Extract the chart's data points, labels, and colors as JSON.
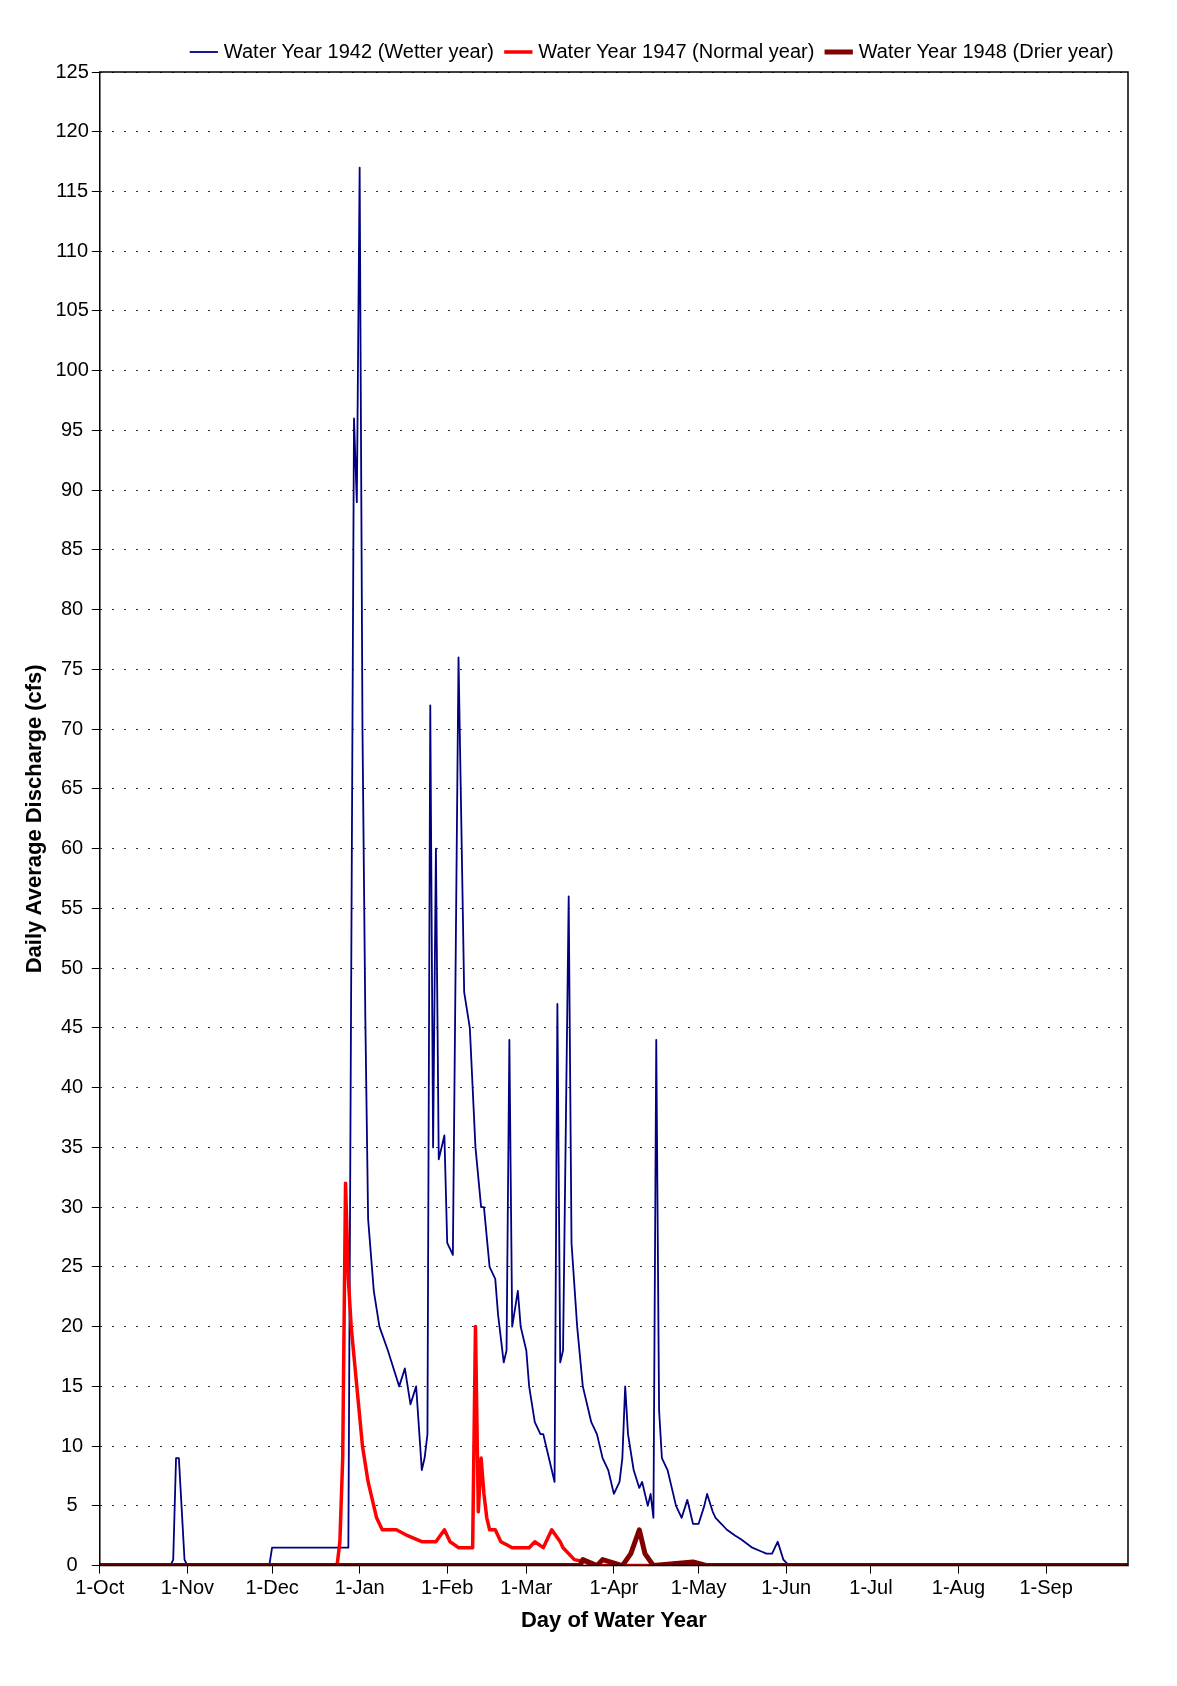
{
  "chart_data": {
    "type": "line",
    "xlabel": "Day of Water Year",
    "ylabel": "Daily Average Discharge (cfs)",
    "xlim": [
      "1941-10-01",
      "1942-09-30"
    ],
    "xticks": [
      {
        "value": "1941-10-01",
        "label": "1-Oct"
      },
      {
        "value": "1941-11-01",
        "label": "1-Nov"
      },
      {
        "value": "1941-12-01",
        "label": "1-Dec"
      },
      {
        "value": "1942-01-01",
        "label": "1-Jan"
      },
      {
        "value": "1942-02-01",
        "label": "1-Feb"
      },
      {
        "value": "1942-03-01",
        "label": "1-Mar"
      },
      {
        "value": "1942-04-01",
        "label": "1-Apr"
      },
      {
        "value": "1942-05-01",
        "label": "1-May"
      },
      {
        "value": "1942-06-01",
        "label": "1-Jun"
      },
      {
        "value": "1942-07-01",
        "label": "1-Jul"
      },
      {
        "value": "1942-08-01",
        "label": "1-Aug"
      },
      {
        "value": "1942-09-01",
        "label": "1-Sep"
      }
    ],
    "ylim": [
      0,
      125
    ],
    "yticks": [
      0,
      5,
      10,
      15,
      20,
      25,
      30,
      35,
      40,
      45,
      50,
      55,
      60,
      65,
      70,
      75,
      80,
      85,
      90,
      95,
      100,
      105,
      110,
      115,
      120,
      125
    ],
    "grid": "y",
    "legend": "top right",
    "marker": "none",
    "line_style": "solid",
    "series": [
      {
        "name": "Water Year 1942 (Wetter year)",
        "color": "#000080",
        "x": [
          "1941-10-01",
          "1941-10-26",
          "1941-10-27",
          "1941-10-28",
          "1941-10-29",
          "1941-10-31",
          "1941-11-01",
          "1941-11-30",
          "1941-12-01",
          "1941-12-28",
          "1941-12-30",
          "1941-12-31",
          "1942-01-01",
          "1942-01-02",
          "1942-01-03",
          "1942-01-04",
          "1942-01-06",
          "1942-01-08",
          "1942-01-11",
          "1942-01-13",
          "1942-01-15",
          "1942-01-17",
          "1942-01-19",
          "1942-01-21",
          "1942-01-23",
          "1942-01-24",
          "1942-01-25",
          "1942-01-26",
          "1942-01-27",
          "1942-01-28",
          "1942-01-29",
          "1942-01-31",
          "1942-02-01",
          "1942-02-03",
          "1942-02-05",
          "1942-02-07",
          "1942-02-09",
          "1942-02-11",
          "1942-02-13",
          "1942-02-14",
          "1942-02-16",
          "1942-02-18",
          "1942-02-19",
          "1942-02-21",
          "1942-02-22",
          "1942-02-23",
          "1942-02-24",
          "1942-02-26",
          "1942-02-27",
          "1942-03-01",
          "1942-03-02",
          "1942-03-04",
          "1942-03-06",
          "1942-03-07",
          "1942-03-09",
          "1942-03-10",
          "1942-03-11",
          "1942-03-12",
          "1942-03-13",
          "1942-03-14",
          "1942-03-16",
          "1942-03-17",
          "1942-03-19",
          "1942-03-21",
          "1942-03-24",
          "1942-03-26",
          "1942-03-28",
          "1942-03-30",
          "1942-04-01",
          "1942-04-03",
          "1942-04-04",
          "1942-04-05",
          "1942-04-06",
          "1942-04-08",
          "1942-04-10",
          "1942-04-11",
          "1942-04-13",
          "1942-04-14",
          "1942-04-15",
          "1942-04-16",
          "1942-04-17",
          "1942-04-18",
          "1942-04-20",
          "1942-04-22",
          "1942-04-23",
          "1942-04-25",
          "1942-04-27",
          "1942-04-29",
          "1942-05-01",
          "1942-05-03",
          "1942-05-04",
          "1942-05-06",
          "1942-05-07",
          "1942-05-11",
          "1942-05-14",
          "1942-05-16",
          "1942-05-20",
          "1942-05-25",
          "1942-05-27",
          "1942-05-29",
          "1942-05-31",
          "1942-06-02",
          "1942-09-30"
        ],
        "values": [
          0,
          0,
          0.5,
          9,
          9,
          0.5,
          0,
          0,
          1.5,
          1.5,
          96,
          89,
          117,
          70,
          46,
          29,
          23,
          20,
          18,
          16.5,
          15,
          16.5,
          13.5,
          15,
          8,
          9,
          11,
          72,
          35,
          60,
          34,
          36,
          27,
          26,
          76,
          48,
          45,
          35,
          30,
          30,
          25,
          24,
          21,
          17,
          18,
          44,
          20,
          23,
          20,
          18,
          15,
          12,
          11,
          11,
          9,
          8,
          7,
          47,
          17,
          18,
          56,
          27,
          20,
          15,
          12,
          11,
          9,
          8,
          6,
          7,
          9,
          15,
          11,
          8,
          6.5,
          7,
          5,
          6,
          4,
          44,
          13,
          9,
          8,
          6,
          5,
          4,
          5.5,
          3.5,
          3.5,
          5,
          6,
          4.5,
          4,
          3,
          2.5,
          2.2,
          1.5,
          1,
          1,
          2,
          0.5,
          0,
          0
        ]
      },
      {
        "name": "Water Year 1947 (Normal year)",
        "color": "#ff0000",
        "x": [
          "1941-10-01",
          "1941-12-24",
          "1941-12-25",
          "1941-12-26",
          "1941-12-27",
          "1941-12-28",
          "1941-12-29",
          "1941-12-31",
          "1942-01-02",
          "1942-01-04",
          "1942-01-06",
          "1942-01-07",
          "1942-01-09",
          "1942-01-14",
          "1942-01-18",
          "1942-01-23",
          "1942-01-28",
          "1942-01-31",
          "1942-02-02",
          "1942-02-05",
          "1942-02-09",
          "1942-02-10",
          "1942-02-11",
          "1942-02-12",
          "1942-02-13",
          "1942-02-14",
          "1942-02-15",
          "1942-02-16",
          "1942-02-18",
          "1942-02-20",
          "1942-02-24",
          "1942-03-02",
          "1942-03-04",
          "1942-03-07",
          "1942-03-10",
          "1942-03-13",
          "1942-03-14",
          "1942-03-18",
          "1942-03-22",
          "1942-03-24",
          "1942-09-30"
        ],
        "values": [
          0,
          0,
          2,
          9,
          32,
          24,
          20,
          15,
          10,
          7,
          5,
          4,
          3,
          3,
          2.5,
          2,
          2,
          3,
          2,
          1.5,
          1.5,
          1.5,
          20,
          4.5,
          9,
          6,
          4,
          3,
          3,
          2,
          1.5,
          1.5,
          2,
          1.5,
          3,
          2,
          1.5,
          0.5,
          0.3,
          0,
          0
        ]
      },
      {
        "name": "Water Year 1948 (Drier year)",
        "color": "#800000",
        "x": [
          "1941-10-01",
          "1942-03-20",
          "1942-03-21",
          "1942-03-26",
          "1942-03-28",
          "1942-04-04",
          "1942-04-07",
          "1942-04-10",
          "1942-04-12",
          "1942-04-15",
          "1942-04-29",
          "1942-05-04",
          "1942-09-30"
        ],
        "values": [
          0,
          0,
          0.5,
          0,
          0.5,
          0,
          1,
          3,
          1,
          0,
          0.3,
          0,
          0
        ]
      }
    ]
  }
}
